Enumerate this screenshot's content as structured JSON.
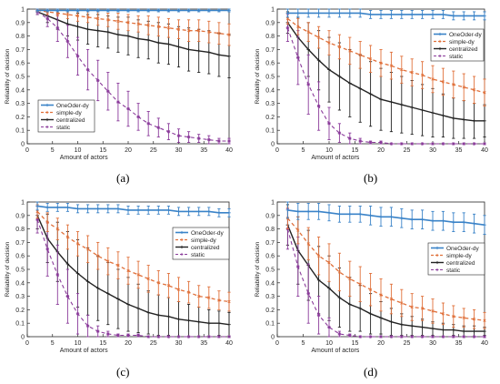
{
  "panels": [
    {
      "label": "(a)"
    },
    {
      "label": "(b)"
    },
    {
      "label": "(c)"
    },
    {
      "label": "(d)"
    }
  ],
  "legend": [
    "OneOder-dy",
    "simple-dy",
    "centralized",
    "static"
  ],
  "colors": {
    "OneOder-dy": "#3a83c8",
    "simple-dy": "#e0703a",
    "centralized": "#222222",
    "static": "#8a3a9a"
  },
  "chart_data": [
    {
      "type": "line",
      "xlabel": "Amount of actors",
      "ylabel": "Reliability of decision",
      "xlim": [
        0,
        40
      ],
      "ylim": [
        0,
        1
      ],
      "xticks": [
        "0",
        "5",
        "10",
        "15",
        "20",
        "25",
        "30",
        "35",
        "40"
      ],
      "yticks": [
        "0",
        "0.1",
        "0.2",
        "0.3",
        "0.4",
        "0.5",
        "0.6",
        "0.7",
        "0.8",
        "0.9",
        "1"
      ],
      "legend_position": "bottom-left",
      "x": [
        2,
        4,
        6,
        8,
        10,
        12,
        14,
        16,
        18,
        20,
        22,
        24,
        26,
        28,
        30,
        32,
        34,
        36,
        38,
        40
      ],
      "series": [
        {
          "name": "OneOder-dy",
          "values": [
            0.99,
            0.99,
            0.99,
            0.99,
            0.99,
            0.99,
            0.99,
            0.99,
            0.99,
            0.99,
            0.99,
            0.99,
            0.99,
            0.99,
            0.99,
            0.99,
            0.99,
            0.99,
            0.99,
            0.99
          ],
          "err": [
            0.01,
            0.01,
            0.01,
            0.01,
            0.01,
            0.01,
            0.01,
            0.01,
            0.01,
            0.01,
            0.01,
            0.01,
            0.01,
            0.01,
            0.01,
            0.01,
            0.01,
            0.01,
            0.01,
            0.01
          ]
        },
        {
          "name": "simple-dy",
          "values": [
            0.99,
            0.98,
            0.97,
            0.96,
            0.95,
            0.94,
            0.93,
            0.92,
            0.91,
            0.9,
            0.89,
            0.88,
            0.87,
            0.86,
            0.85,
            0.84,
            0.84,
            0.83,
            0.82,
            0.81
          ],
          "err": [
            0.01,
            0.02,
            0.02,
            0.03,
            0.04,
            0.04,
            0.05,
            0.05,
            0.06,
            0.06,
            0.06,
            0.07,
            0.07,
            0.07,
            0.07,
            0.08,
            0.08,
            0.08,
            0.08,
            0.08
          ]
        },
        {
          "name": "centralized",
          "values": [
            0.98,
            0.95,
            0.92,
            0.89,
            0.87,
            0.85,
            0.84,
            0.83,
            0.81,
            0.8,
            0.78,
            0.77,
            0.75,
            0.74,
            0.72,
            0.7,
            0.69,
            0.68,
            0.66,
            0.65
          ],
          "err": [
            0.02,
            0.05,
            0.07,
            0.09,
            0.1,
            0.11,
            0.12,
            0.12,
            0.13,
            0.14,
            0.14,
            0.14,
            0.15,
            0.15,
            0.15,
            0.16,
            0.16,
            0.16,
            0.16,
            0.16
          ]
        },
        {
          "name": "static",
          "values": [
            0.98,
            0.93,
            0.86,
            0.76,
            0.65,
            0.55,
            0.47,
            0.39,
            0.31,
            0.26,
            0.2,
            0.15,
            0.12,
            0.09,
            0.06,
            0.05,
            0.04,
            0.03,
            0.02,
            0.02
          ],
          "err": [
            0.02,
            0.06,
            0.1,
            0.12,
            0.14,
            0.15,
            0.15,
            0.14,
            0.14,
            0.13,
            0.1,
            0.09,
            0.07,
            0.06,
            0.05,
            0.04,
            0.03,
            0.03,
            0.02,
            0.02
          ]
        }
      ]
    },
    {
      "type": "line",
      "xlabel": "Amount of actors",
      "ylabel": "Reliability of decision",
      "xlim": [
        0,
        40
      ],
      "ylim": [
        0,
        1
      ],
      "xticks": [
        "0",
        "5",
        "10",
        "15",
        "20",
        "25",
        "30",
        "35",
        "40"
      ],
      "yticks": [
        "0",
        "0.1",
        "0.2",
        "0.3",
        "0.4",
        "0.5",
        "0.6",
        "0.7",
        "0.8",
        "0.9",
        "1"
      ],
      "legend_position": "top-right",
      "x": [
        2,
        4,
        6,
        8,
        10,
        12,
        14,
        16,
        18,
        20,
        22,
        24,
        26,
        28,
        30,
        32,
        34,
        36,
        38,
        40
      ],
      "series": [
        {
          "name": "OneOder-dy",
          "values": [
            0.97,
            0.97,
            0.97,
            0.97,
            0.97,
            0.97,
            0.97,
            0.97,
            0.96,
            0.96,
            0.96,
            0.96,
            0.96,
            0.96,
            0.96,
            0.96,
            0.95,
            0.95,
            0.95,
            0.95
          ],
          "err": [
            0.03,
            0.03,
            0.03,
            0.03,
            0.03,
            0.03,
            0.03,
            0.03,
            0.03,
            0.03,
            0.03,
            0.03,
            0.03,
            0.03,
            0.03,
            0.03,
            0.03,
            0.03,
            0.03,
            0.03
          ]
        },
        {
          "name": "simple-dy",
          "values": [
            0.93,
            0.87,
            0.83,
            0.79,
            0.75,
            0.72,
            0.69,
            0.66,
            0.63,
            0.6,
            0.58,
            0.55,
            0.53,
            0.51,
            0.48,
            0.46,
            0.44,
            0.42,
            0.4,
            0.38
          ],
          "err": [
            0.04,
            0.06,
            0.07,
            0.08,
            0.09,
            0.09,
            0.1,
            0.1,
            0.1,
            0.1,
            0.1,
            0.1,
            0.1,
            0.1,
            0.1,
            0.1,
            0.1,
            0.1,
            0.1,
            0.1
          ]
        },
        {
          "name": "centralized",
          "values": [
            0.9,
            0.79,
            0.7,
            0.62,
            0.55,
            0.5,
            0.45,
            0.41,
            0.37,
            0.33,
            0.31,
            0.29,
            0.27,
            0.25,
            0.23,
            0.21,
            0.19,
            0.18,
            0.17,
            0.17
          ],
          "err": [
            0.08,
            0.15,
            0.2,
            0.22,
            0.24,
            0.25,
            0.25,
            0.25,
            0.24,
            0.23,
            0.22,
            0.21,
            0.2,
            0.19,
            0.18,
            0.16,
            0.15,
            0.14,
            0.13,
            0.12
          ]
        },
        {
          "name": "static",
          "values": [
            0.86,
            0.64,
            0.44,
            0.28,
            0.15,
            0.08,
            0.04,
            0.02,
            0.01,
            0.01,
            0,
            0,
            0,
            0,
            0,
            0,
            0,
            0,
            0,
            0
          ],
          "err": [
            0.1,
            0.2,
            0.22,
            0.18,
            0.12,
            0.07,
            0.04,
            0.02,
            0.01,
            0.01,
            0,
            0,
            0,
            0,
            0,
            0,
            0,
            0,
            0,
            0
          ]
        }
      ]
    },
    {
      "type": "line",
      "xlabel": "Amount of actors",
      "ylabel": "Reliability of decision",
      "xlim": [
        0,
        40
      ],
      "ylim": [
        0,
        1
      ],
      "xticks": [
        "0",
        "5",
        "10",
        "15",
        "20",
        "25",
        "30",
        "35",
        "40"
      ],
      "yticks": [
        "0",
        "0.1",
        "0.2",
        "0.3",
        "0.4",
        "0.5",
        "0.6",
        "0.7",
        "0.8",
        "0.9",
        "1"
      ],
      "legend_position": "right",
      "x": [
        2,
        4,
        6,
        8,
        10,
        12,
        14,
        16,
        18,
        20,
        22,
        24,
        26,
        28,
        30,
        32,
        34,
        36,
        38,
        40
      ],
      "series": [
        {
          "name": "OneOder-dy",
          "values": [
            0.97,
            0.96,
            0.96,
            0.96,
            0.95,
            0.95,
            0.95,
            0.95,
            0.95,
            0.94,
            0.94,
            0.94,
            0.94,
            0.94,
            0.93,
            0.93,
            0.93,
            0.93,
            0.92,
            0.92
          ],
          "err": [
            0.03,
            0.03,
            0.03,
            0.03,
            0.03,
            0.03,
            0.03,
            0.03,
            0.03,
            0.03,
            0.03,
            0.03,
            0.03,
            0.03,
            0.03,
            0.03,
            0.03,
            0.03,
            0.03,
            0.03
          ]
        },
        {
          "name": "simple-dy",
          "values": [
            0.93,
            0.85,
            0.8,
            0.74,
            0.69,
            0.65,
            0.6,
            0.56,
            0.53,
            0.49,
            0.46,
            0.43,
            0.4,
            0.38,
            0.35,
            0.33,
            0.3,
            0.29,
            0.27,
            0.26
          ],
          "err": [
            0.05,
            0.07,
            0.08,
            0.09,
            0.09,
            0.1,
            0.1,
            0.1,
            0.1,
            0.1,
            0.1,
            0.1,
            0.09,
            0.09,
            0.09,
            0.08,
            0.08,
            0.08,
            0.07,
            0.07
          ]
        },
        {
          "name": "centralized",
          "values": [
            0.9,
            0.73,
            0.63,
            0.54,
            0.47,
            0.41,
            0.36,
            0.32,
            0.28,
            0.24,
            0.21,
            0.18,
            0.16,
            0.15,
            0.13,
            0.12,
            0.11,
            0.1,
            0.1,
            0.09
          ],
          "err": [
            0.1,
            0.18,
            0.22,
            0.24,
            0.25,
            0.25,
            0.24,
            0.23,
            0.22,
            0.2,
            0.18,
            0.16,
            0.15,
            0.14,
            0.13,
            0.12,
            0.11,
            0.1,
            0.09,
            0.09
          ]
        },
        {
          "name": "static",
          "values": [
            0.87,
            0.65,
            0.46,
            0.3,
            0.17,
            0.08,
            0.04,
            0.02,
            0.01,
            0.01,
            0.01,
            0,
            0,
            0,
            0,
            0,
            0,
            0,
            0,
            0
          ],
          "err": [
            0.1,
            0.2,
            0.22,
            0.2,
            0.15,
            0.08,
            0.04,
            0.02,
            0.01,
            0.01,
            0.01,
            0,
            0,
            0,
            0,
            0,
            0,
            0,
            0,
            0
          ]
        }
      ]
    },
    {
      "type": "line",
      "xlabel": "Amount of actors",
      "ylabel": "Reliability of decision",
      "xlim": [
        0,
        40
      ],
      "ylim": [
        0,
        1
      ],
      "xticks": [
        "0",
        "5",
        "10",
        "15",
        "20",
        "25",
        "30",
        "35",
        "40"
      ],
      "yticks": [
        "0",
        "0.1",
        "0.2",
        "0.3",
        "0.4",
        "0.5",
        "0.6",
        "0.7",
        "0.8",
        "0.9",
        "1"
      ],
      "legend_position": "right",
      "x": [
        2,
        4,
        6,
        8,
        10,
        12,
        14,
        16,
        18,
        20,
        22,
        24,
        26,
        28,
        30,
        32,
        34,
        36,
        38,
        40
      ],
      "series": [
        {
          "name": "OneOder-dy",
          "values": [
            0.94,
            0.93,
            0.93,
            0.93,
            0.92,
            0.91,
            0.91,
            0.91,
            0.9,
            0.89,
            0.89,
            0.88,
            0.87,
            0.87,
            0.86,
            0.86,
            0.85,
            0.85,
            0.84,
            0.83
          ],
          "err": [
            0.06,
            0.06,
            0.06,
            0.06,
            0.06,
            0.06,
            0.06,
            0.06,
            0.07,
            0.07,
            0.07,
            0.07,
            0.07,
            0.07,
            0.07,
            0.07,
            0.07,
            0.07,
            0.07,
            0.07
          ]
        },
        {
          "name": "simple-dy",
          "values": [
            0.88,
            0.79,
            0.69,
            0.6,
            0.55,
            0.48,
            0.43,
            0.39,
            0.35,
            0.31,
            0.28,
            0.25,
            0.22,
            0.21,
            0.19,
            0.17,
            0.15,
            0.14,
            0.13,
            0.12
          ],
          "err": [
            0.08,
            0.1,
            0.12,
            0.14,
            0.14,
            0.14,
            0.13,
            0.13,
            0.12,
            0.12,
            0.11,
            0.1,
            0.1,
            0.09,
            0.09,
            0.08,
            0.08,
            0.07,
            0.07,
            0.06
          ]
        },
        {
          "name": "centralized",
          "values": [
            0.83,
            0.64,
            0.53,
            0.42,
            0.36,
            0.29,
            0.24,
            0.21,
            0.17,
            0.14,
            0.11,
            0.09,
            0.08,
            0.07,
            0.06,
            0.05,
            0.05,
            0.04,
            0.04,
            0.04
          ],
          "err": [
            0.15,
            0.25,
            0.26,
            0.25,
            0.24,
            0.22,
            0.2,
            0.17,
            0.15,
            0.12,
            0.1,
            0.08,
            0.07,
            0.06,
            0.05,
            0.05,
            0.04,
            0.04,
            0.04,
            0.03
          ]
        },
        {
          "name": "static",
          "values": [
            0.8,
            0.52,
            0.32,
            0.16,
            0.07,
            0.02,
            0.01,
            0,
            0,
            0,
            0,
            0,
            0,
            0,
            0,
            0,
            0,
            0,
            0,
            0
          ],
          "err": [
            0.15,
            0.22,
            0.22,
            0.14,
            0.07,
            0.02,
            0.01,
            0,
            0,
            0,
            0,
            0,
            0,
            0,
            0,
            0,
            0,
            0,
            0,
            0
          ]
        }
      ]
    }
  ]
}
